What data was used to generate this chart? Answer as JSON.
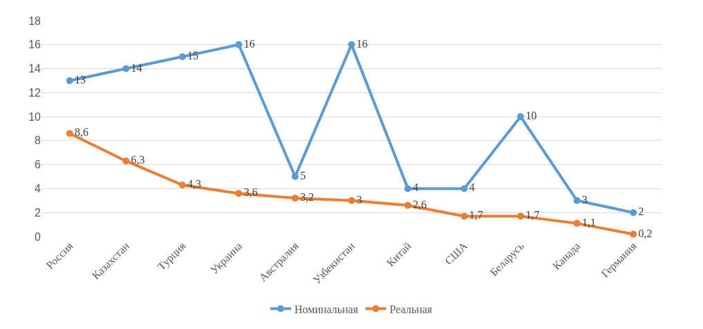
{
  "chart_data": {
    "type": "line",
    "categories": [
      "Россия",
      "Казахстан",
      "Турция",
      "Украина",
      "Австралия",
      "Узбекистан",
      "Китай",
      "США",
      "Беларусь",
      "Канада",
      "Германия"
    ],
    "series": [
      {
        "name": "Номинальная",
        "color": "#5b9bd5",
        "values": [
          13,
          14,
          15,
          16,
          5,
          16,
          4,
          4,
          10,
          3,
          2
        ],
        "value_labels": [
          "13",
          "14",
          "15",
          "16",
          "5",
          "16",
          "4",
          "4",
          "10",
          "3",
          "2"
        ]
      },
      {
        "name": "Реальная",
        "color": "#ed7d31",
        "values": [
          8.6,
          6.3,
          4.3,
          3.6,
          3.2,
          3,
          2.6,
          1.7,
          1.7,
          1.1,
          0.2
        ],
        "value_labels": [
          "8,6",
          "6,3",
          "4,3",
          "3,6",
          "3,2",
          "3",
          "2,6",
          "1,7",
          "1,7",
          "1,1",
          "0,2"
        ]
      }
    ],
    "ylim": [
      0,
      18
    ],
    "yticks": [
      0,
      2,
      4,
      6,
      8,
      10,
      12,
      14,
      16,
      18
    ],
    "grid": "y",
    "legend": "bottom",
    "marker": "circle",
    "line_style": "solid"
  }
}
